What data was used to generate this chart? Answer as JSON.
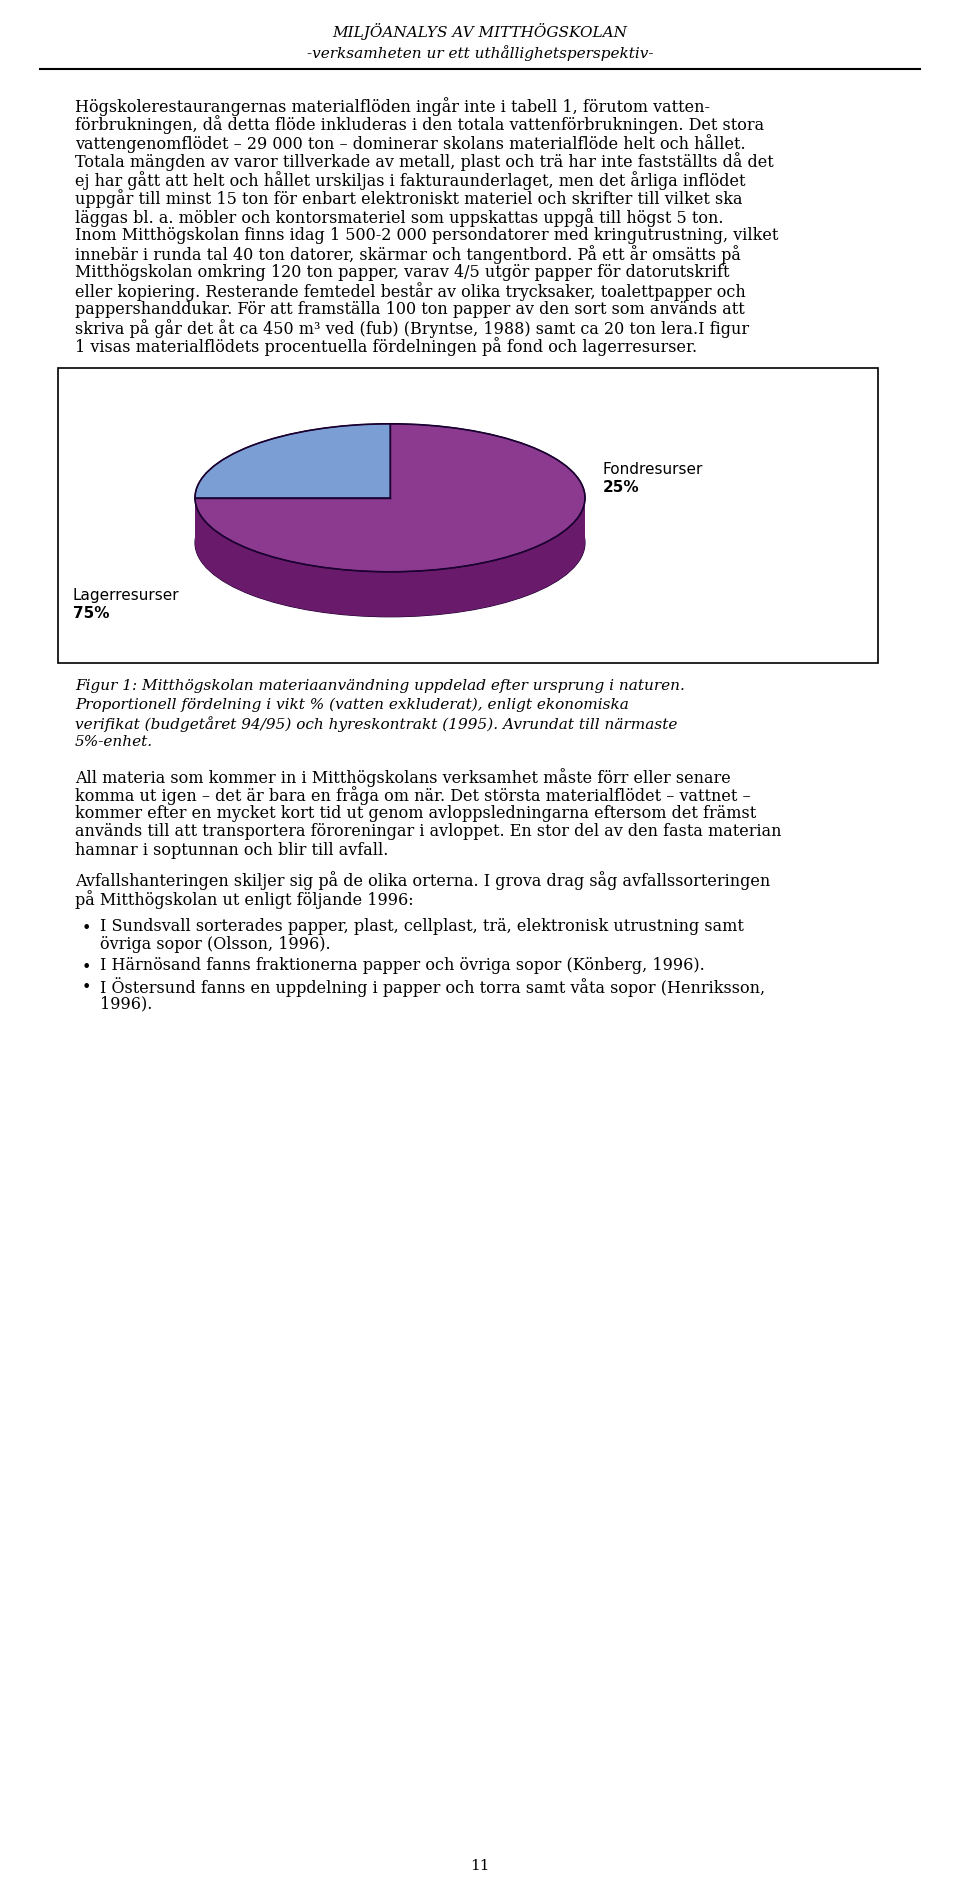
{
  "header_title": "MILJÖANALYS AV MITTHÖGSKOLAN",
  "header_subtitle": "-verksamheten ur ett uthållighetsperspektiv-",
  "pie_values": [
    25,
    75
  ],
  "pie_colors": [
    "#7b9fd4",
    "#8b3a8f"
  ],
  "pie_edge_color": "#1a0030",
  "pie_side_colors": [
    "#5a7ab0",
    "#6a1a6a"
  ],
  "pie_bottom_color": "#2a0a2a",
  "figure_caption_line1": "Figur 1: Mitthögskolan materiaanvändning uppdelad efter ursprung i naturen.",
  "figure_caption_line2": "Proportionell fördelning i vikt % (vatten exkluderat), enligt ekonomiska",
  "figure_caption_line3": "verifikat (budgetåret 94/95) och hyreskontrakt (1995). Avrundat till närmaste",
  "figure_caption_line4": "5%-enhet.",
  "page_number": "11",
  "background_color": "#ffffff",
  "text_color": "#000000",
  "para1_lines": [
    "Högskolerestaurangernas materialflöden ingår inte i tabell 1, förutom vatten-",
    "förbrukningen, då detta flöde inkluderas i den totala vattenförbrukningen. Det stora",
    "vattengenomflödet – 29 000 ton – dominerar skolans materialflöde helt och hållet.",
    "Totala mängden av varor tillverkade av metall, plast och trä har inte fastställts då det",
    "ej har gått att helt och hållet urskiljas i fakturaunderlaget, men det årliga inflödet",
    "uppgår till minst 15 ton för enbart elektroniskt materiel och skrifter till vilket ska",
    "läggas bl. a. möbler och kontorsmateriel som uppskattas uppgå till högst 5 ton.",
    "Inom Mitthögskolan finns idag 1 500-2 000 persondatorer med kringutrustning, vilket",
    "innebär i runda tal 40 ton datorer, skärmar och tangentbord. På ett år omsätts på",
    "Mitthögskolan omkring 120 ton papper, varav 4/5 utgör papper för datorutskrift",
    "eller kopiering. Resterande femtedel består av olika trycksaker, toalettpapper och",
    "pappershanddukar. För att framställa 100 ton papper av den sort som används att",
    "skriva på går det åt ca 450 m³ ved (fub) (Bryntse, 1988) samt ca 20 ton lera.I figur",
    "1 visas materialflödets procentuella fördelningen på fond och lagerresurser."
  ],
  "para2_lines": [
    "All materia som kommer in i Mitthögskolans verksamhet måste förr eller senare",
    "komma ut igen – det är bara en fråga om när. Det största materialflödet – vattnet –",
    "kommer efter en mycket kort tid ut genom avloppsledningarna eftersom det främst",
    "används till att transportera föroreningar i avloppet. En stor del av den fasta materian",
    "hamnar i soptunnan och blir till avfall."
  ],
  "para3_lines": [
    "Avfallshanteringen skiljer sig på de olika orterna. I grova drag såg avfallssorteringen",
    "på Mitthögskolan ut enligt följande 1996:"
  ],
  "bullets": [
    [
      "I Sundsvall sorterades papper, plast, cellplast, trä, elektronisk utrustning samt",
      "övriga sopor (Olsson, 1996)."
    ],
    [
      "I Härnösand fanns fraktionerna papper och övriga sopor (Könberg, 1996)."
    ],
    [
      "I Östersund fanns en uppdelning i papper och torra samt våta sopor (Henriksson,",
      "1996)."
    ]
  ]
}
